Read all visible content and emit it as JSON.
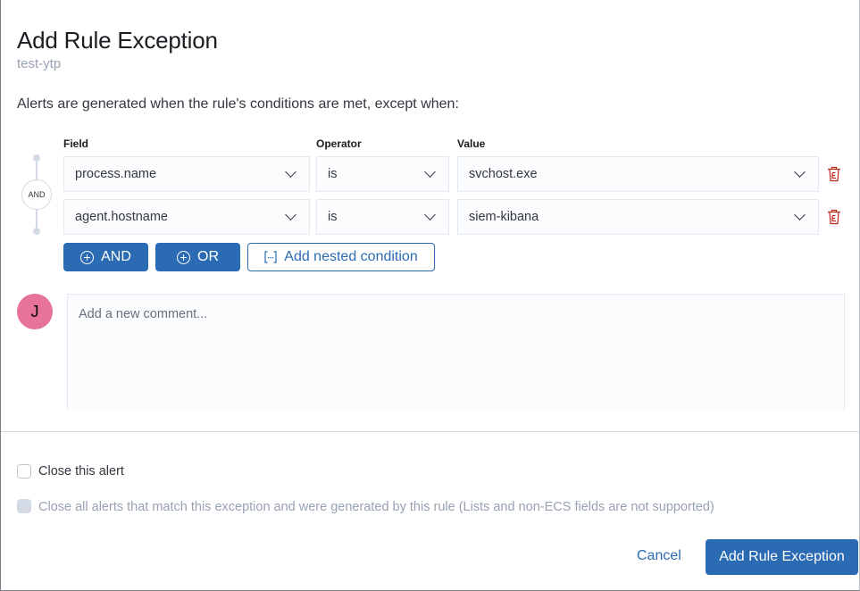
{
  "modal": {
    "title": "Add Rule Exception",
    "subtitle": "test-ytp",
    "description": "Alerts are generated when the rule's conditions are met, except when:"
  },
  "builder": {
    "headers": {
      "field": "Field",
      "operator": "Operator",
      "value": "Value"
    },
    "group_label": "AND",
    "rows": [
      {
        "field": "process.name",
        "operator": "is",
        "value": "svchost.exe"
      },
      {
        "field": "agent.hostname",
        "operator": "is",
        "value": "siem-kibana"
      }
    ],
    "and_label": "AND",
    "or_label": "OR",
    "nested_label": "Add nested condition"
  },
  "comment": {
    "avatar_initial": "J",
    "placeholder": "Add a new comment..."
  },
  "options": {
    "close_alert": {
      "label": "Close this alert",
      "checked": false
    },
    "close_all": {
      "label": "Close all alerts that match this exception and were generated by this rule (Lists and non-ECS fields are not supported)",
      "checked": false,
      "disabled": true
    }
  },
  "footer": {
    "cancel": "Cancel",
    "submit": "Add Rule Exception"
  },
  "colors": {
    "primary": "#2a6bb3",
    "danger": "#bd271e",
    "avatar": "#e7739a"
  },
  "icons": {
    "dropdown": "chevron-down-icon",
    "delete": "trash-icon",
    "add": "plus-circle-icon",
    "nested": "nested-bracket-icon"
  }
}
